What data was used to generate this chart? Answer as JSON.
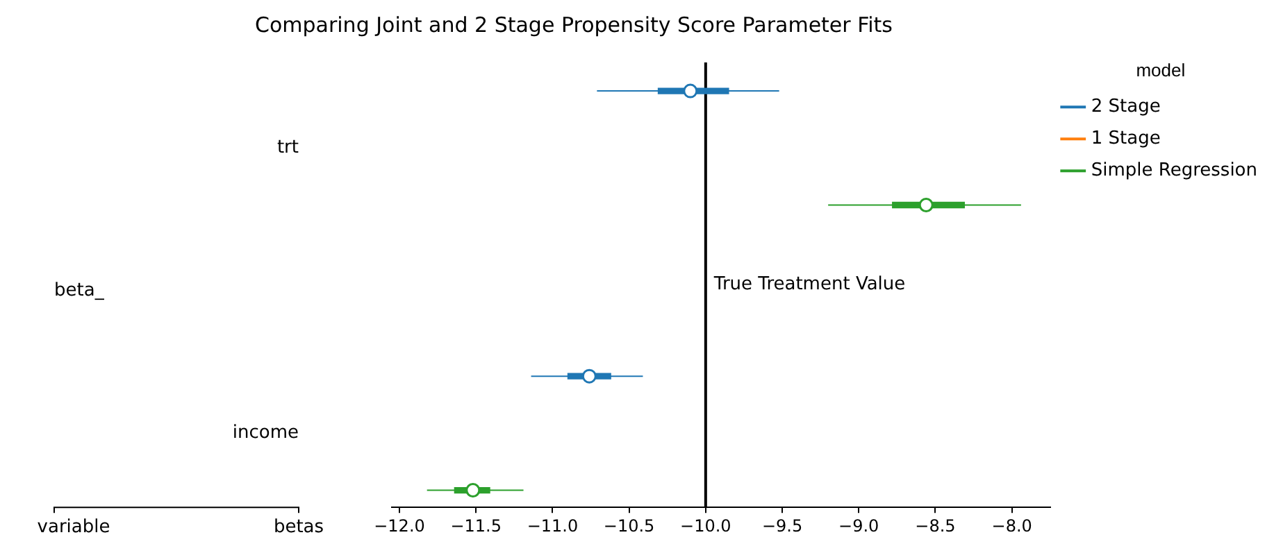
{
  "chart_data": {
    "type": "box",
    "orientation": "horizontal",
    "title": "Comparing Joint and 2 Stage Propensity Score Parameter Fits",
    "categories": [
      "trt",
      "income"
    ],
    "series": [
      {
        "name": "2 Stage",
        "color": "#1f77b4",
        "boxes": [
          {
            "low": -10.71,
            "q1": -10.31,
            "median": -10.1,
            "q3": -9.85,
            "high": -9.52
          },
          {
            "low": -11.14,
            "q1": -10.9,
            "median": -10.76,
            "q3": -10.62,
            "high": -10.41
          }
        ]
      },
      {
        "name": "1 Stage",
        "color": "#ff7f0e",
        "boxes": [
          null,
          null
        ]
      },
      {
        "name": "Simple Regression",
        "color": "#2ca02c",
        "boxes": [
          {
            "low": -9.2,
            "q1": -8.78,
            "median": -8.56,
            "q3": -8.31,
            "high": -7.94
          },
          {
            "low": -11.82,
            "q1": -11.64,
            "median": -11.52,
            "q3": -11.41,
            "high": -11.19
          }
        ]
      }
    ],
    "xlim": [
      -12.05,
      -7.75
    ],
    "xticks": [
      {
        "value": -12,
        "label": "−12.0"
      },
      {
        "value": -11.5,
        "label": "−11.5"
      },
      {
        "value": -11,
        "label": "−11.0"
      },
      {
        "value": -10.5,
        "label": "−10.5"
      },
      {
        "value": -10,
        "label": "−10.0"
      },
      {
        "value": -9.5,
        "label": "−9.5"
      },
      {
        "value": -9,
        "label": "−9.0"
      },
      {
        "value": -8.5,
        "label": "−8.5"
      },
      {
        "value": -8,
        "label": "−8.0"
      }
    ],
    "ref_lines": [
      {
        "axis": "x",
        "value": -10,
        "label": "True Treatment Value",
        "color": "#000000"
      }
    ],
    "legend_title": "model",
    "legend": "top right",
    "marker": "circle",
    "grid": false,
    "annotations": [
      "beta_",
      "variable",
      "betas"
    ]
  }
}
